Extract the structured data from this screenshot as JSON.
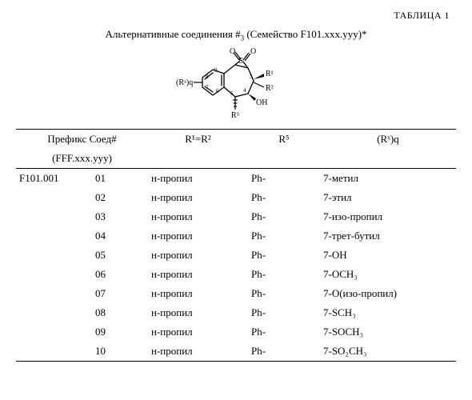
{
  "table_label": "ТАБЛИЦА 1",
  "title_prefix": "Альтернативные соединения #",
  "title_sub": "3",
  "title_suffix": " (Семейство F101.xxx.yyy)*",
  "structure": {
    "stroke": "#000000",
    "stroke_width": 1.3,
    "font_family": "Times New Roman, serif",
    "font_size_small": 9,
    "font_size_label": 10,
    "labels": {
      "SO2_O1": "O",
      "SO2_O2": "O",
      "S": "S",
      "R1": "R¹",
      "R2": "R²",
      "R5": "R⁵",
      "OH": "OH",
      "Rxq": "(Rˣ)q",
      "n2": "2",
      "n3": "3",
      "n4": "4",
      "n5": "5",
      "n6": "6",
      "n7": "7",
      "n8": "8",
      "n9": "9"
    }
  },
  "headers": {
    "prefix_line1": "Префикс Соед#",
    "prefix_line2": "(FFF.xxx.yyy)",
    "r12_html": "R¹=R²",
    "r5_html": "R⁵",
    "rxq_html": "(Rˣ)q"
  },
  "prefix": "F101.001",
  "rows": [
    {
      "n": "01",
      "r12": "н-пропил",
      "r5": "Ph-",
      "rxq": "7-метил"
    },
    {
      "n": "02",
      "r12": "н-пропил",
      "r5": "Ph-",
      "rxq": "7-этил"
    },
    {
      "n": "03",
      "r12": "н-пропил",
      "r5": "Ph-",
      "rxq": "7-изо-пропил"
    },
    {
      "n": "04",
      "r12": "н-пропил",
      "r5": "Ph-",
      "rxq": "7-трет-бутил"
    },
    {
      "n": "05",
      "r12": "н-пропил",
      "r5": "Ph-",
      "rxq": "7-OH"
    },
    {
      "n": "06",
      "r12": "н-пропил",
      "r5": "Ph-",
      "rxq": "7-OCH₃"
    },
    {
      "n": "07",
      "r12": "н-пропил",
      "r5": "Ph-",
      "rxq": "7-O(изо-пропил)"
    },
    {
      "n": "08",
      "r12": "н-пропил",
      "r5": "Ph-",
      "rxq": "7-SCH₃"
    },
    {
      "n": "09",
      "r12": "н-пропил",
      "r5": "Ph-",
      "rxq": "7-SOCH₃"
    },
    {
      "n": "10",
      "r12": "н-пропил",
      "r5": "Ph-",
      "rxq": "7-SO₂CH₃"
    }
  ],
  "colors": {
    "text": "#000000",
    "rule": "#000000",
    "bg": "#ffffff"
  }
}
